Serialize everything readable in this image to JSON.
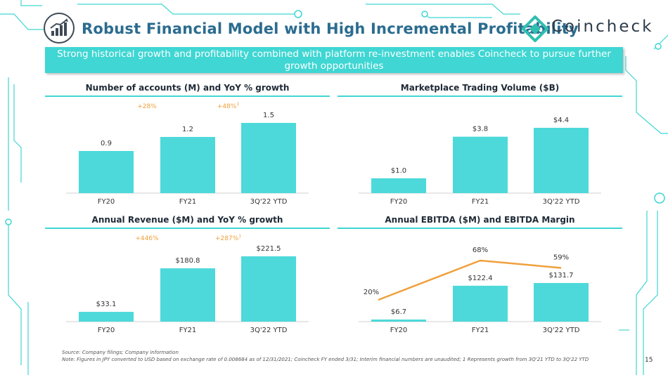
{
  "header": {
    "title": "Robust Financial Model with High Incremental Profitability",
    "logo_text": "Coincheck",
    "banner_text": "Strong historical growth and profitability combined with platform re-investment enables Coincheck to pursue further growth opportunities"
  },
  "colors": {
    "bar": "#4dd9da",
    "line": "#f0a03c",
    "accent": "#3fd6d3",
    "title": "#2b6c8f",
    "growth": "#f0a03c"
  },
  "chart_data": [
    {
      "id": "accounts",
      "type": "bar",
      "title": "Number of accounts (M) and YoY % growth",
      "categories": [
        "FY20",
        "FY21",
        "3Q'22 YTD"
      ],
      "values": [
        0.9,
        1.2,
        1.5
      ],
      "value_labels": [
        "0.9",
        "1.2",
        "1.5"
      ],
      "growth_labels": [
        "+28%",
        "+48%"
      ],
      "growth_superscripts": [
        "",
        "1"
      ]
    },
    {
      "id": "volume",
      "type": "bar",
      "title": "Marketplace Trading Volume ($B)",
      "categories": [
        "FY20",
        "FY21",
        "3Q'22 YTD"
      ],
      "values": [
        1.0,
        3.8,
        4.4
      ],
      "value_labels": [
        "$1.0",
        "$3.8",
        "$4.4"
      ]
    },
    {
      "id": "revenue",
      "type": "bar",
      "title": "Annual Revenue ($M) and YoY % growth",
      "categories": [
        "FY20",
        "FY21",
        "3Q'22 YTD"
      ],
      "values": [
        33.1,
        180.8,
        221.5
      ],
      "value_labels": [
        "$33.1",
        "$180.8",
        "$221.5"
      ],
      "growth_labels": [
        "+446%",
        "+287%"
      ],
      "growth_superscripts": [
        "",
        "1"
      ]
    },
    {
      "id": "ebitda",
      "type": "bar",
      "title": "Annual EBITDA ($M) and EBITDA Margin",
      "categories": [
        "FY20",
        "FY21",
        "3Q'22 YTD"
      ],
      "values": [
        6.7,
        122.4,
        131.7
      ],
      "value_labels": [
        "$6.7",
        "$122.4",
        "$131.7"
      ],
      "line_series": {
        "values": [
          20,
          68,
          59
        ],
        "labels": [
          "20%",
          "68%",
          "59%"
        ]
      }
    }
  ],
  "footer": {
    "source": "Source: Company filings; Company information",
    "note": "Note: Figures in JPY converted to USD based on exchange rate of 0.008684 as of 12/31/2021; Coincheck FY ended 3/31; Interim financial numbers are unaudited; 1 Represents growth from 3Q'21 YTD to 3Q'22 YTD",
    "page_number": "15"
  }
}
